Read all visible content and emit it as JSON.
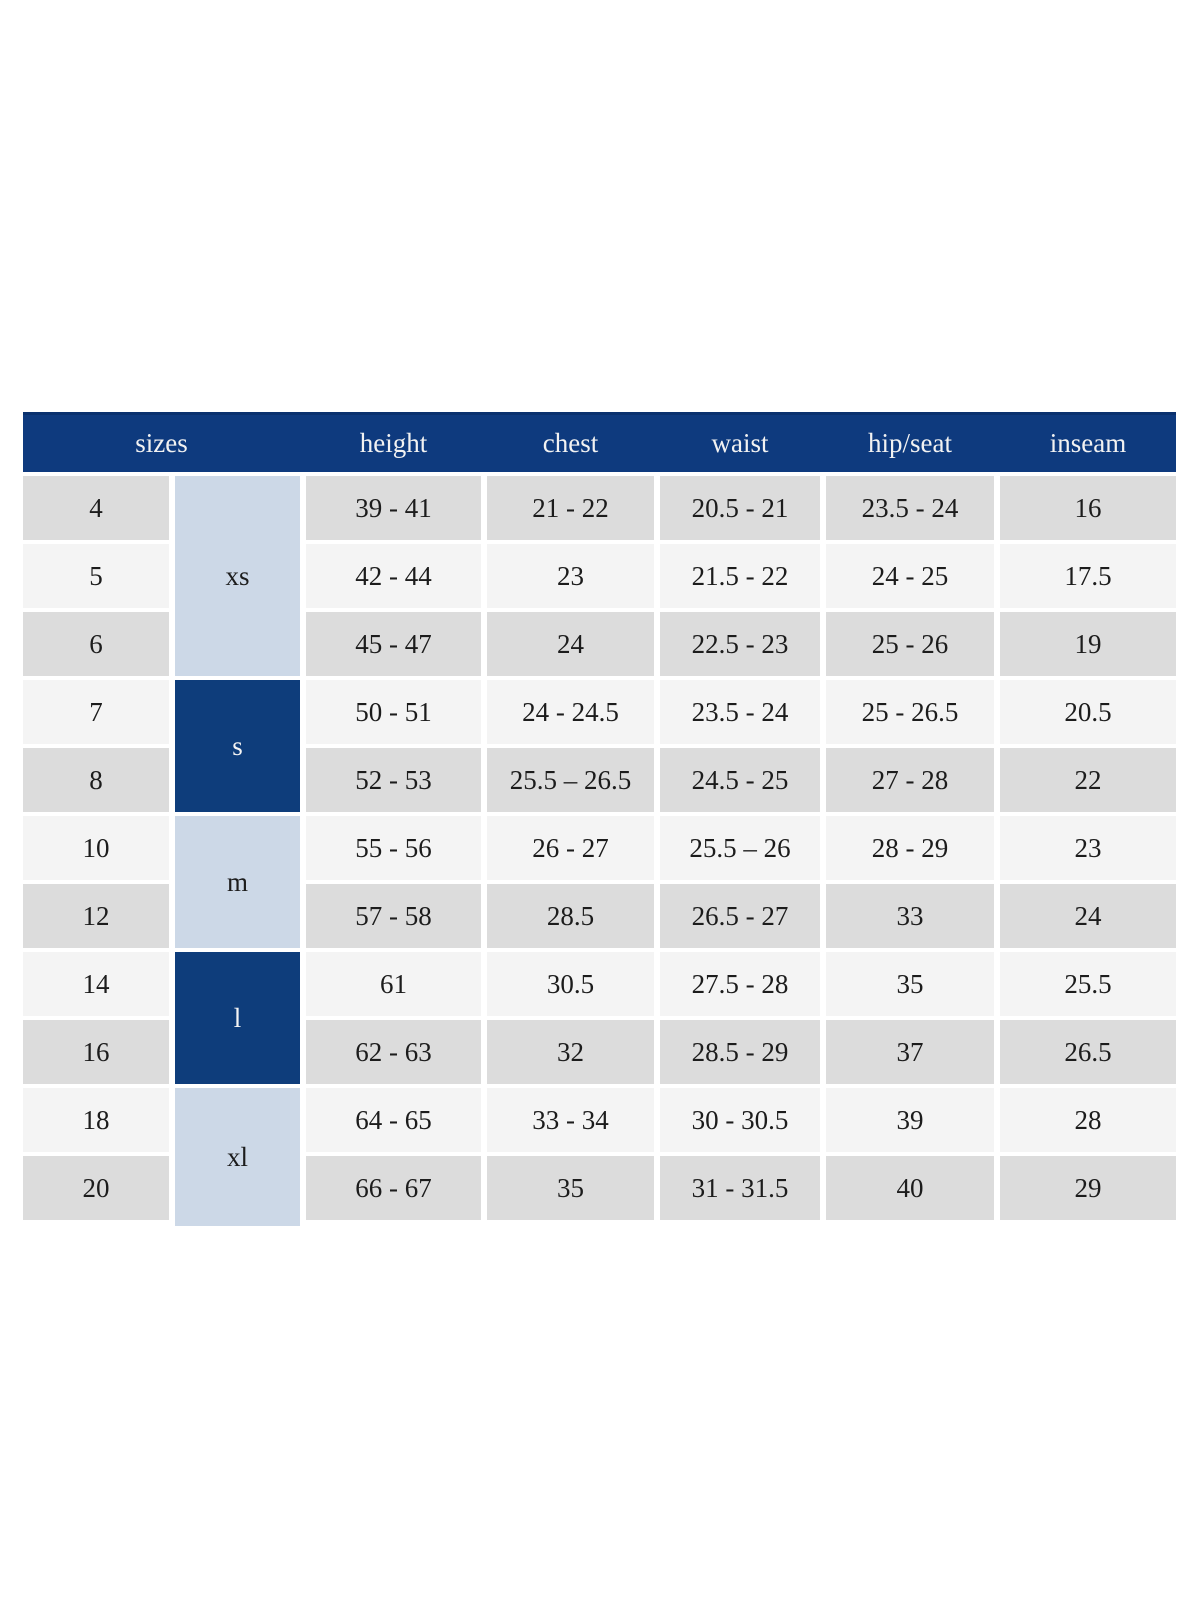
{
  "chart_data": {
    "type": "table",
    "columns": [
      "sizes",
      "height",
      "chest",
      "waist",
      "hip/seat",
      "inseam"
    ],
    "size_groups": [
      {
        "label": "xs",
        "sizes": [
          "4",
          "5",
          "6"
        ]
      },
      {
        "label": "s",
        "sizes": [
          "7",
          "8"
        ]
      },
      {
        "label": "m",
        "sizes": [
          "10",
          "12"
        ]
      },
      {
        "label": "l",
        "sizes": [
          "14",
          "16"
        ]
      },
      {
        "label": "xl",
        "sizes": [
          "18",
          "20"
        ]
      }
    ],
    "rows": [
      {
        "size": "4",
        "height": "39 - 41",
        "chest": "21 - 22",
        "waist": "20.5 - 21",
        "hip_seat": "23.5 - 24",
        "inseam": "16"
      },
      {
        "size": "5",
        "height": "42 - 44",
        "chest": "23",
        "waist": "21.5 - 22",
        "hip_seat": "24 - 25",
        "inseam": "17.5"
      },
      {
        "size": "6",
        "height": "45 - 47",
        "chest": "24",
        "waist": "22.5 - 23",
        "hip_seat": "25 - 26",
        "inseam": "19"
      },
      {
        "size": "7",
        "height": "50 - 51",
        "chest": "24 - 24.5",
        "waist": "23.5 - 24",
        "hip_seat": "25 - 26.5",
        "inseam": "20.5"
      },
      {
        "size": "8",
        "height": "52 - 53",
        "chest": "25.5 – 26.5",
        "waist": "24.5 - 25",
        "hip_seat": "27 - 28",
        "inseam": "22"
      },
      {
        "size": "10",
        "height": "55 - 56",
        "chest": "26 - 27",
        "waist": "25.5 – 26",
        "hip_seat": "28 - 29",
        "inseam": "23"
      },
      {
        "size": "12",
        "height": "57 - 58",
        "chest": "28.5",
        "waist": "26.5 - 27",
        "hip_seat": "33",
        "inseam": "24"
      },
      {
        "size": "14",
        "height": "61",
        "chest": "30.5",
        "waist": "27.5 - 28",
        "hip_seat": "35",
        "inseam": "25.5"
      },
      {
        "size": "16",
        "height": "62 - 63",
        "chest": "32",
        "waist": "28.5 - 29",
        "hip_seat": "37",
        "inseam": "26.5"
      },
      {
        "size": "18",
        "height": "64 - 65",
        "chest": "33 - 34",
        "waist": "30 - 30.5",
        "hip_seat": "39",
        "inseam": "28"
      },
      {
        "size": "20",
        "height": "66 - 67",
        "chest": "35",
        "waist": "31 - 31.5",
        "hip_seat": "40",
        "inseam": "29"
      }
    ]
  },
  "colors": {
    "header_bg": "#0e3a7e",
    "header_top_border": "#0a316e",
    "header_text": "#f2f2f2",
    "group_dark_bg": "#0e3d7b",
    "group_light_bg": "#ccd8e7",
    "row_gray_bg": "#dcdcdc",
    "row_light_bg": "#f4f4f4",
    "cell_text": "#1c1c1c",
    "page_bg": "#ffffff"
  }
}
